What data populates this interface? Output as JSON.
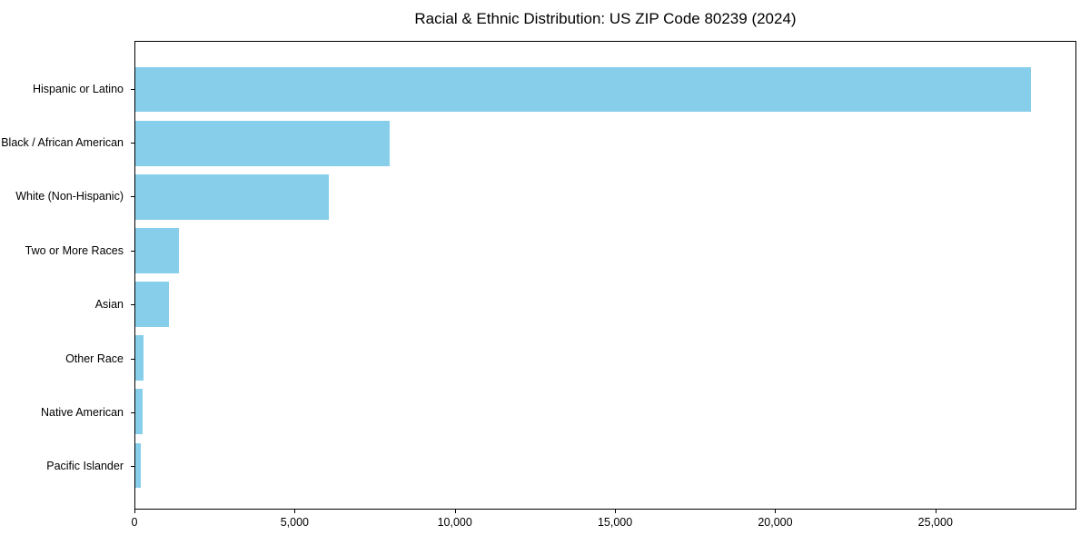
{
  "chart_data": {
    "type": "bar",
    "orientation": "horizontal",
    "title": "Racial & Ethnic Distribution: US ZIP Code 80239 (2024)",
    "categories": [
      "Hispanic or Latino",
      "Black / African American",
      "White (Non-Hispanic)",
      "Two or More Races",
      "Asian",
      "Other Race",
      "Native American",
      "Pacific Islander"
    ],
    "values": [
      28000,
      7950,
      6050,
      1350,
      1050,
      260,
      230,
      170
    ],
    "xlabel": "",
    "ylabel": "",
    "xlim": [
      0,
      29400
    ],
    "xticks": [
      {
        "value": 0,
        "label": "0"
      },
      {
        "value": 5000,
        "label": "5,000"
      },
      {
        "value": 10000,
        "label": "10,000"
      },
      {
        "value": 15000,
        "label": "15,000"
      },
      {
        "value": 20000,
        "label": "20,000"
      },
      {
        "value": 25000,
        "label": "25,000"
      }
    ],
    "bar_color": "#87CEEB",
    "axis_color": "#000000",
    "background_color": "#FFFFFF",
    "grid": false,
    "legend": "none"
  }
}
